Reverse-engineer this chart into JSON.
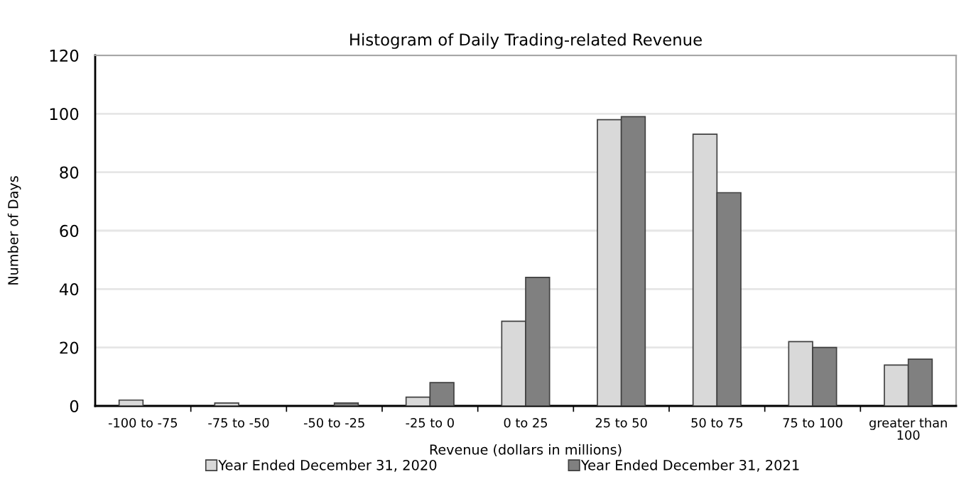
{
  "chart_data": {
    "type": "bar",
    "title": "Histogram of Daily Trading-related Revenue",
    "xlabel": "Revenue (dollars in millions)",
    "ylabel": "Number of Days",
    "categories": [
      "-100 to -75",
      "-75 to -50",
      "-50 to -25",
      "-25 to 0",
      "0 to 25",
      "25 to 50",
      "50 to 75",
      "75 to 100",
      "greater than\n100"
    ],
    "series": [
      {
        "name": "Year Ended December 31, 2020",
        "color": "#d9d9d9",
        "values": [
          2,
          1,
          0,
          3,
          29,
          98,
          93,
          22,
          14
        ]
      },
      {
        "name": "Year Ended December 31, 2021",
        "color": "#808080",
        "values": [
          0,
          0,
          1,
          8,
          44,
          99,
          73,
          20,
          16
        ]
      }
    ],
    "ylim": [
      0,
      120
    ],
    "yticks": [
      0,
      20,
      40,
      60,
      80,
      100,
      120
    ],
    "grid": "y",
    "legend": "bottom"
  }
}
